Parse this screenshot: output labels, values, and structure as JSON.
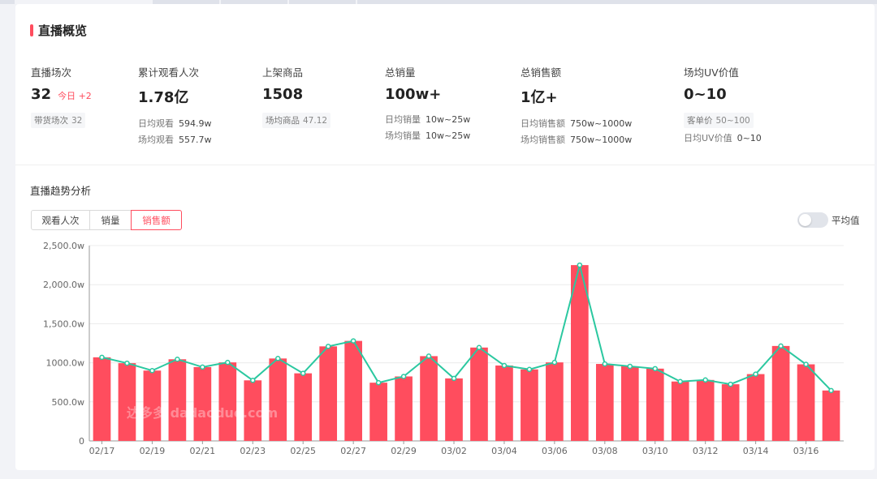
{
  "colors": {
    "accent": "#ff4d5e",
    "line": "#2bc8a0",
    "grid": "#ececec"
  },
  "header": {
    "title": "直播概览"
  },
  "metrics": {
    "live_sessions": {
      "label": "直播场次",
      "value": "32",
      "today_label": "今日",
      "today_delta": "+2",
      "sub_key": "带货场次",
      "sub_value": "32"
    },
    "views": {
      "label": "累计观看人次",
      "value": "1.78亿",
      "sub1_key": "日均观看",
      "sub1_value": "594.9w",
      "sub2_key": "场均观看",
      "sub2_value": "557.7w"
    },
    "products": {
      "label": "上架商品",
      "value": "1508",
      "sub_key": "场均商品",
      "sub_value": "47.12"
    },
    "sales_volume": {
      "label": "总销量",
      "value": "100w+",
      "sub1_key": "日均销量",
      "sub1_value": "10w~25w",
      "sub2_key": "场均销量",
      "sub2_value": "10w~25w"
    },
    "sales_amount": {
      "label": "总销售额",
      "value": "1亿+",
      "sub1_key": "日均销售额",
      "sub1_value": "750w~1000w",
      "sub2_key": "场均销售额",
      "sub2_value": "750w~1000w"
    },
    "uv_value": {
      "label": "场均UV价值",
      "value": "0~10",
      "sub1_key": "客单价",
      "sub1_value": "50~100",
      "sub2_key": "日均UV价值",
      "sub2_value": "0~10"
    }
  },
  "trend": {
    "title": "直播趋势分析",
    "tabs": [
      "观看人次",
      "销量",
      "销售额"
    ],
    "active_tab": "销售额",
    "toggle_label": "平均值",
    "toggle_on": false
  },
  "chart_data": {
    "type": "bar",
    "y_ticks": [
      "0",
      "500.0w",
      "1000.0w",
      "1,500.0w",
      "2,000.0w",
      "2,500.0w"
    ],
    "ylim": [
      0,
      2500
    ],
    "x_tick_labels": [
      "02/17",
      "02/19",
      "02/21",
      "02/23",
      "02/25",
      "02/27",
      "02/29",
      "03/02",
      "03/04",
      "03/06",
      "03/08",
      "03/10",
      "03/12",
      "03/14",
      "03/16"
    ],
    "categories": [
      "02/17",
      "02/18",
      "02/19",
      "02/20",
      "02/21",
      "02/22",
      "02/23",
      "02/24",
      "02/25",
      "02/26",
      "02/27",
      "02/28",
      "02/29",
      "03/01",
      "03/02",
      "03/03",
      "03/04",
      "03/05",
      "03/06",
      "03/07",
      "03/08",
      "03/09",
      "03/10",
      "03/11",
      "03/12",
      "03/13",
      "03/14",
      "03/15",
      "03/16",
      "03/17"
    ],
    "series": [
      {
        "type": "bar",
        "values": [
          1070,
          995,
          900,
          1045,
          945,
          1005,
          775,
          1055,
          865,
          1210,
          1280,
          745,
          825,
          1085,
          800,
          1195,
          965,
          915,
          1005,
          2250,
          985,
          955,
          925,
          760,
          780,
          725,
          855,
          1215,
          980,
          645
        ]
      },
      {
        "type": "line",
        "values": [
          1070,
          995,
          900,
          1045,
          945,
          1005,
          775,
          1055,
          865,
          1210,
          1280,
          745,
          825,
          1085,
          800,
          1195,
          965,
          915,
          1005,
          2250,
          985,
          955,
          925,
          760,
          780,
          725,
          855,
          1215,
          980,
          645
        ]
      }
    ],
    "grid": true,
    "legend": "none",
    "watermark": "达多多 dadaoduo.com"
  }
}
